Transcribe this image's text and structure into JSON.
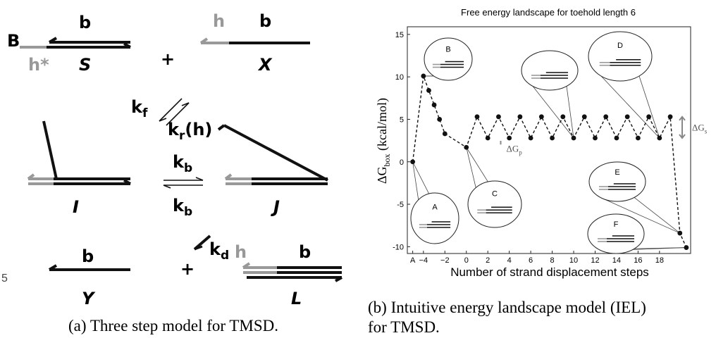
{
  "diagram": {
    "panel_letter": "B",
    "cut_label": "5",
    "S": {
      "top": "b",
      "toehold": "h*",
      "name": "S"
    },
    "plus_1": "+",
    "X": {
      "toehold": "h",
      "domain": "b",
      "name": "X"
    },
    "k_f": {
      "symbol": "k",
      "subscript": "f"
    },
    "k_r": {
      "symbol": "k",
      "subscript": "r",
      "suffix": "(h)"
    },
    "I": {
      "name": "I"
    },
    "k_b_forward": {
      "symbol": "k",
      "subscript": "b"
    },
    "k_b_reverse": {
      "symbol": "k",
      "subscript": "b"
    },
    "J": {
      "name": "J"
    },
    "k_d": {
      "symbol": "k",
      "subscript": "d"
    },
    "Y": {
      "domain": "b",
      "name": "Y"
    },
    "plus_2": "+",
    "L": {
      "toehold": "h",
      "domain": "b",
      "name": "L"
    },
    "caption": "(a) Three step model for TMSD."
  },
  "chart_data": {
    "type": "line",
    "title": "Free energy landscape for toehold length 6",
    "xlabel": "Number of strand displacement steps",
    "ylabel": {
      "main": "ΔG",
      "subscript": "box",
      "unit": " (kcal/mol)"
    },
    "x": [
      -5,
      -4,
      -3.5,
      -3,
      -2.5,
      -2,
      0,
      1,
      2,
      3,
      4,
      5,
      6,
      7,
      8,
      9,
      10,
      11,
      12,
      13,
      14,
      15,
      16,
      17,
      18,
      19,
      19.9,
      20.5
    ],
    "series": [
      {
        "color": "#111111",
        "values": [
          0,
          10.1,
          8.4,
          6.7,
          5.0,
          3.3,
          1.7,
          5.3,
          2.8,
          5.3,
          2.8,
          5.3,
          2.8,
          5.3,
          2.8,
          5.3,
          2.8,
          5.3,
          2.8,
          5.3,
          2.8,
          5.3,
          2.8,
          5.3,
          2.8,
          5.3,
          -8.4,
          -10.1
        ]
      }
    ],
    "xlim": [
      -5.5,
      20.9
    ],
    "ylim": [
      -10.8,
      15.9
    ],
    "xticks": [
      {
        "value": -5,
        "label": "A"
      },
      {
        "value": -4,
        "label": "−4"
      },
      {
        "value": -2,
        "label": "−2"
      },
      0,
      2,
      4,
      6,
      8,
      10,
      12,
      14,
      16,
      18
    ],
    "yticks": [
      -10,
      -5,
      0,
      5,
      10,
      15
    ],
    "annotations": {
      "dG_s": {
        "main": "ΔG",
        "subscript": "s"
      },
      "dG_p": {
        "main": "ΔG",
        "subscript": "p"
      }
    },
    "insets": [
      "A",
      "B",
      "C",
      "D",
      "E",
      "F"
    ],
    "caption": [
      "(b) Intuitive energy landscape model (IEL)",
      "for TMSD."
    ]
  }
}
